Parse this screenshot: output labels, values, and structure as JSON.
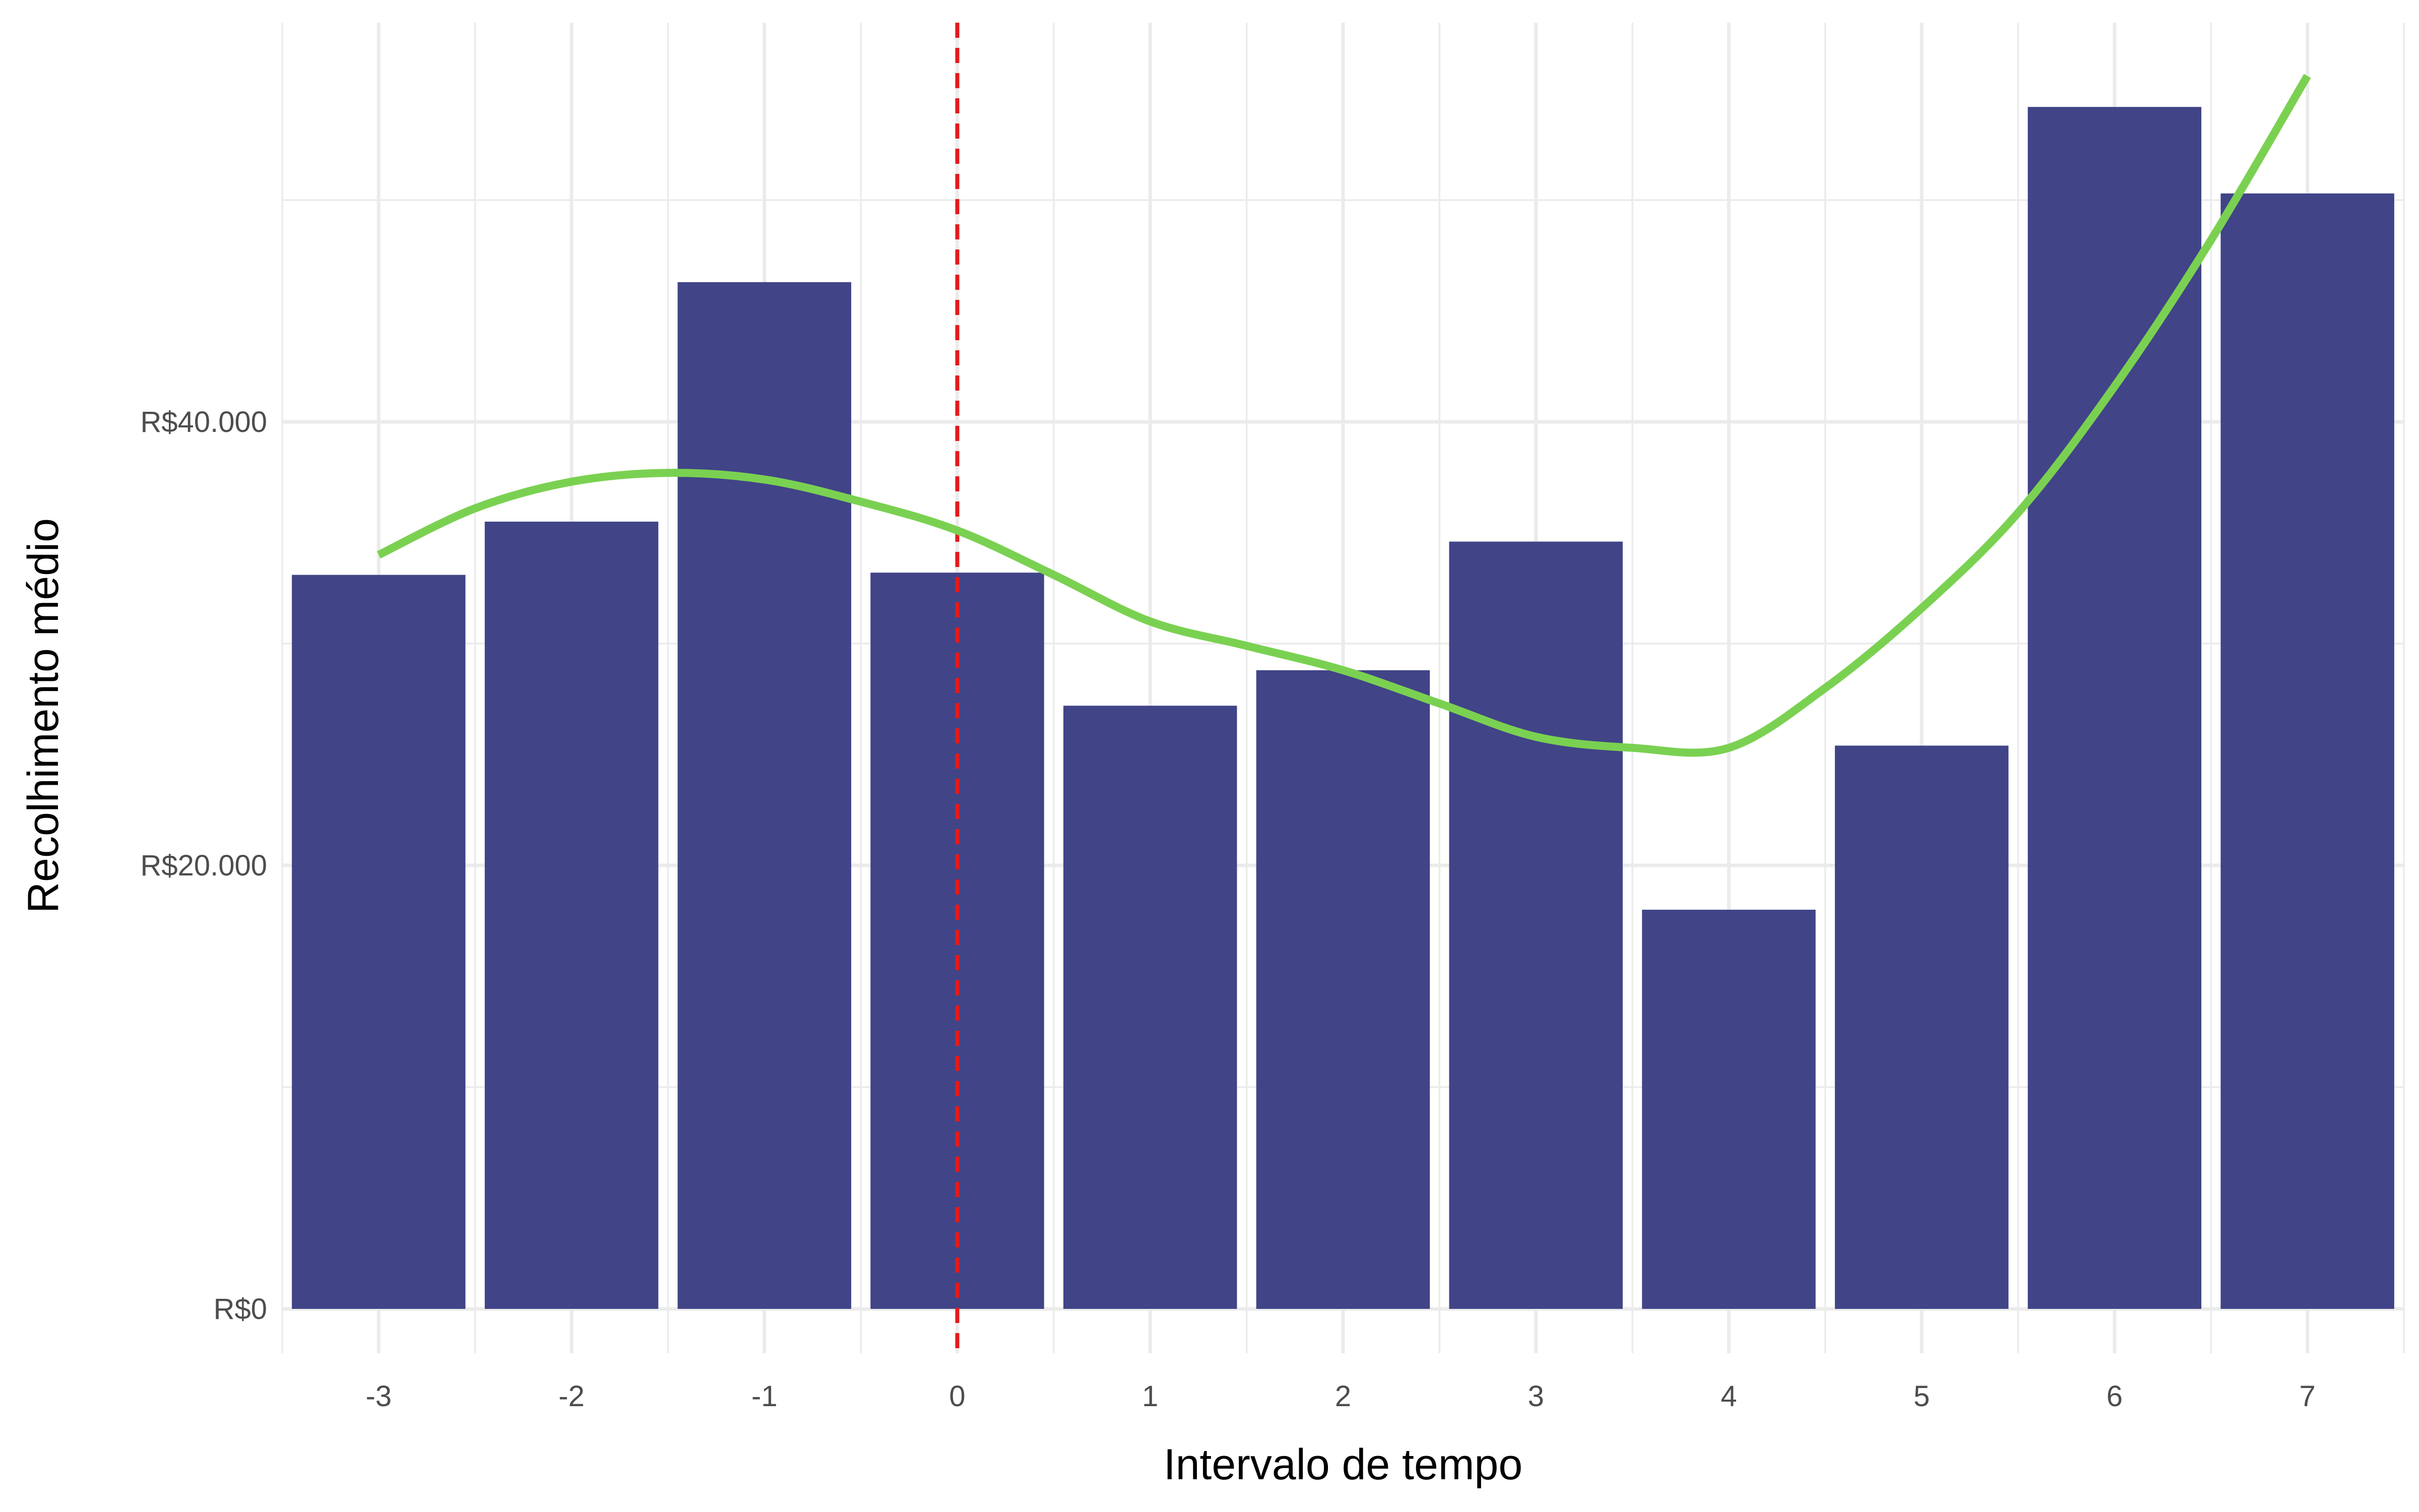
{
  "chart_data": {
    "type": "bar",
    "title": "",
    "xlabel": "Intervalo de tempo",
    "ylabel": "Recolhimento médio",
    "categories": [
      -3,
      -2,
      -1,
      0,
      1,
      2,
      3,
      4,
      5,
      6,
      7
    ],
    "values": [
      33100,
      35500,
      46300,
      33200,
      27200,
      28800,
      34600,
      18000,
      25400,
      54200,
      50300
    ],
    "ylim": [
      -2000,
      58000
    ],
    "xlim": [
      -3.5,
      7.5
    ],
    "y_ticks": [
      0,
      20000,
      40000
    ],
    "y_tick_labels": [
      "R$0",
      "R$20.000",
      "R$40.000"
    ],
    "x_ticks": [
      -3,
      -2,
      -1,
      0,
      1,
      2,
      3,
      4,
      5,
      6,
      7
    ],
    "x_tick_labels": [
      "-3",
      "-2",
      "-1",
      "0",
      "1",
      "2",
      "3",
      "4",
      "5",
      "6",
      "7"
    ],
    "trend_line": {
      "x": [
        -3,
        -2.5,
        -2,
        -1.5,
        -1,
        -0.5,
        0,
        0.5,
        1,
        1.5,
        2,
        2.5,
        3,
        3.5,
        4,
        4.5,
        5,
        5.5,
        6,
        6.5,
        7
      ],
      "y": [
        34000,
        36100,
        37300,
        37700,
        37400,
        36400,
        35100,
        33100,
        31000,
        29900,
        28800,
        27300,
        25800,
        25300,
        25300,
        28000,
        31600,
        35900,
        41600,
        48200,
        55600
      ],
      "color": "#7ad151"
    },
    "reference_line": {
      "x": 0,
      "color": "#e41a1c",
      "style": "dashed"
    },
    "bar_color": "#414487",
    "grid": true,
    "legend": "none"
  }
}
